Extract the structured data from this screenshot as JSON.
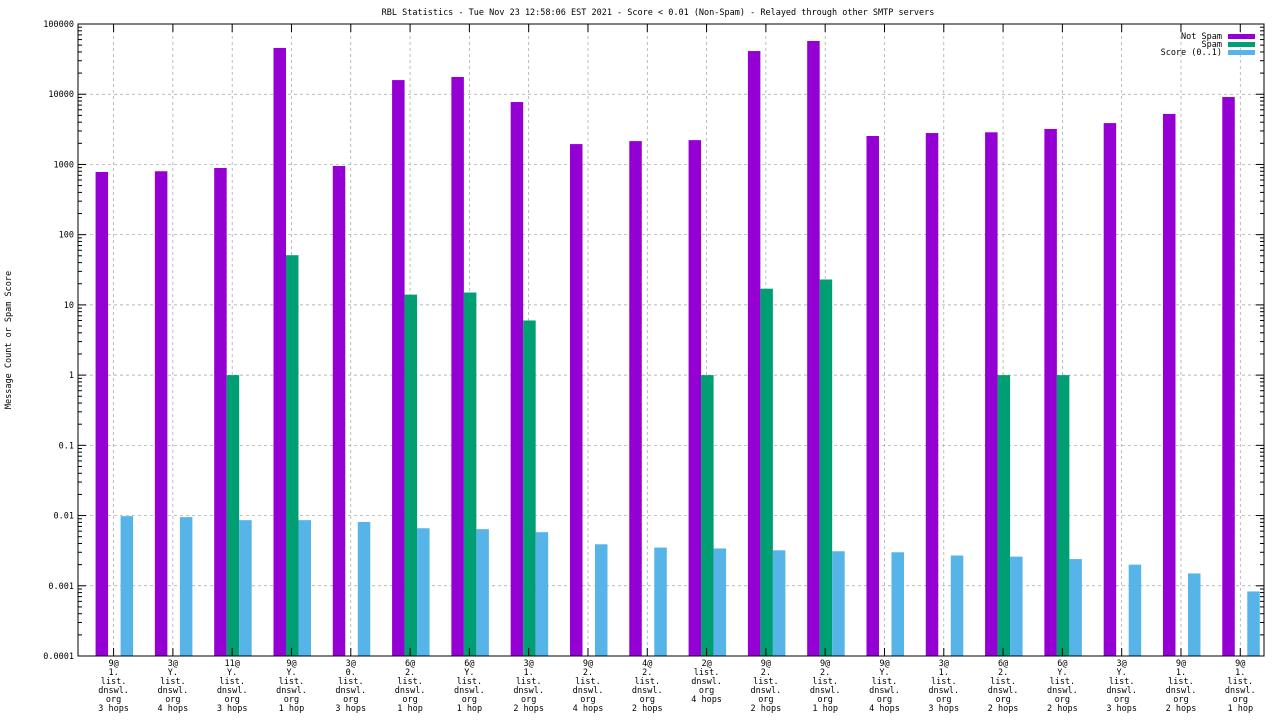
{
  "chart_data": {
    "type": "bar",
    "title": "RBL Statistics - Tue Nov 23 12:58:06 EST 2021 - Score < 0.01 (Non-Spam) - Relayed through other SMTP servers",
    "xlabel": "",
    "ylabel": "Message Count or Spam Score",
    "yscale": "log",
    "ylim": [
      0.0001,
      100000
    ],
    "yticks": [
      "0.0001",
      "0.001",
      "0.01",
      "0.1",
      "1",
      "10",
      "100",
      "1000",
      "10000",
      "100000"
    ],
    "grid": true,
    "legend_position": "top-right",
    "categories": [
      [
        "9@",
        "1.",
        "list.",
        "dnswl.",
        "org",
        "3 hops"
      ],
      [
        "3@",
        "Y.",
        "list.",
        "dnswl.",
        "org",
        "4 hops"
      ],
      [
        "11@",
        "Y.",
        "list.",
        "dnswl.",
        "org",
        "3 hops"
      ],
      [
        "9@",
        "Y.",
        "list.",
        "dnswl.",
        "org",
        "1 hop"
      ],
      [
        "3@",
        "0.",
        "list.",
        "dnswl.",
        "org",
        "3 hops"
      ],
      [
        "6@",
        "2.",
        "list.",
        "dnswl.",
        "org",
        "1 hop"
      ],
      [
        "6@",
        "Y.",
        "list.",
        "dnswl.",
        "org",
        "1 hop"
      ],
      [
        "3@",
        "1.",
        "list.",
        "dnswl.",
        "org",
        "2 hops"
      ],
      [
        "9@",
        "2.",
        "list.",
        "dnswl.",
        "org",
        "4 hops"
      ],
      [
        "4@",
        "2.",
        "list.",
        "dnswl.",
        "org",
        "2 hops"
      ],
      [
        "2@",
        "list.",
        "dnswl.",
        "org",
        "4 hops"
      ],
      [
        "9@",
        "2.",
        "list.",
        "dnswl.",
        "org",
        "2 hops"
      ],
      [
        "9@",
        "2.",
        "list.",
        "dnswl.",
        "org",
        "1 hop"
      ],
      [
        "9@",
        "Y.",
        "list.",
        "dnswl.",
        "org",
        "4 hops"
      ],
      [
        "3@",
        "1.",
        "list.",
        "dnswl.",
        "org",
        "3 hops"
      ],
      [
        "6@",
        "2.",
        "list.",
        "dnswl.",
        "org",
        "2 hops"
      ],
      [
        "6@",
        "Y.",
        "list.",
        "dnswl.",
        "org",
        "2 hops"
      ],
      [
        "3@",
        "Y.",
        "list.",
        "dnswl.",
        "org",
        "3 hops"
      ],
      [
        "9@",
        "1.",
        "list.",
        "dnswl.",
        "org",
        "2 hops"
      ],
      [
        "9@",
        "1.",
        "list.",
        "dnswl.",
        "org",
        "1 hop"
      ]
    ],
    "series": [
      {
        "name": "Not Spam",
        "color": "#9400d3",
        "values": [
          780,
          800,
          890,
          45600,
          950,
          15900,
          17600,
          7740,
          1950,
          2150,
          2220,
          41200,
          57300,
          2540,
          2800,
          2870,
          3200,
          3880,
          5240,
          9120
        ]
      },
      {
        "name": "Spam",
        "color": "#009e73",
        "values": [
          0,
          0,
          1,
          51,
          0,
          14,
          15,
          6,
          0,
          0,
          1,
          17,
          23,
          0,
          0,
          1,
          1,
          0,
          0,
          0
        ]
      },
      {
        "name": "Score (0..1)",
        "color": "#56b4e9",
        "values": [
          0.0098,
          0.0095,
          0.0086,
          0.0086,
          0.0081,
          0.0066,
          0.0064,
          0.0058,
          0.0039,
          0.0035,
          0.0034,
          0.0032,
          0.0031,
          0.003,
          0.0027,
          0.0026,
          0.0024,
          0.002,
          0.0015,
          0.00083
        ]
      }
    ]
  }
}
